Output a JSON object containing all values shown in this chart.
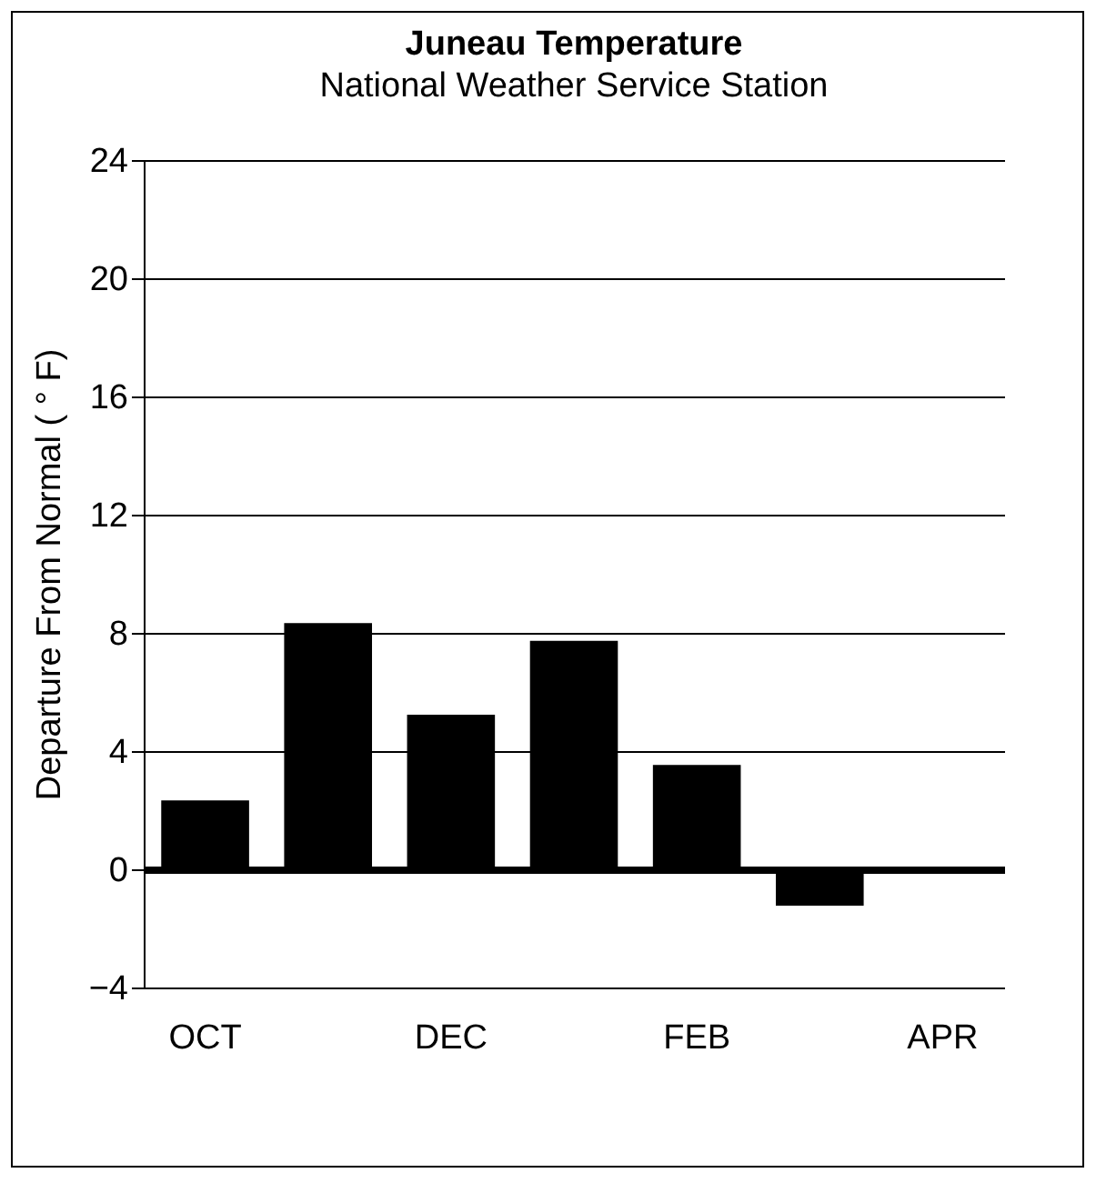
{
  "chart_data": {
    "type": "bar",
    "title": "Juneau Temperature",
    "subtitle": "National Weather Service Station",
    "ylabel": "Departure From Normal ( ° F)",
    "categories": [
      "OCT",
      null,
      "DEC",
      null,
      "FEB",
      null,
      "APR"
    ],
    "values": [
      2.3,
      8.3,
      5.2,
      7.7,
      3.5,
      -1.2,
      null
    ],
    "color": "#000000",
    "ylim": [
      -4,
      24
    ],
    "yticks": [
      -4,
      0,
      4,
      8,
      12,
      16,
      20,
      24
    ],
    "grid": "y"
  }
}
